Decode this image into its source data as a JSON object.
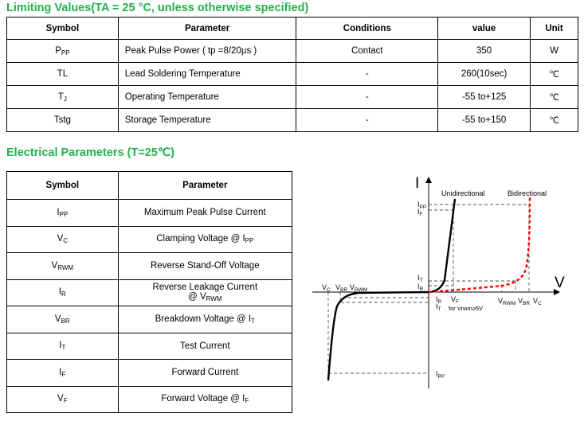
{
  "limiting": {
    "title": "Limiting Values(TA = 25 °C, unless otherwise specified)",
    "headers": [
      "Symbol",
      "Parameter",
      "Conditions",
      "value",
      "Unit"
    ],
    "rows": [
      {
        "symbol": "P",
        "sub": "PP",
        "parameter": "Peak Pulse Power ( tp =8/20μs )",
        "conditions": "Contact",
        "value": "350",
        "unit": "W"
      },
      {
        "symbol": "TL",
        "sub": "",
        "parameter": "Lead Soldering Temperature",
        "conditions": "-",
        "value": "260(10sec)",
        "unit": "℃"
      },
      {
        "symbol": "T",
        "sub": "J",
        "parameter": "Operating Temperature",
        "conditions": "-",
        "value": "-55 to+125",
        "unit": "℃"
      },
      {
        "symbol": "Tstg",
        "sub": "",
        "parameter": "Storage Temperature",
        "conditions": "-",
        "value": "-55 to+150",
        "unit": "℃"
      }
    ]
  },
  "electrical": {
    "title": "Electrical Parameters (T=25℃)",
    "headers": [
      "Symbol",
      "Parameter"
    ],
    "rows": [
      {
        "symbol": "I",
        "sub": "PP",
        "parameter": "Maximum Peak Pulse Current",
        "psym": "",
        "psub": "",
        "line2": ""
      },
      {
        "symbol": "V",
        "sub": "C",
        "parameter": "Clamping Voltage @ ",
        "psym": "I",
        "psub": "PP",
        "line2": ""
      },
      {
        "symbol": "V",
        "sub": "RWM",
        "parameter": "Reverse Stand-Off Voltage",
        "psym": "",
        "psub": "",
        "line2": ""
      },
      {
        "symbol": "I",
        "sub": "R",
        "parameter": "Reverse Leakage Current",
        "psym": "",
        "psub": "",
        "line2": "@ ",
        "l2sym": "V",
        "l2sub": "RWM"
      },
      {
        "symbol": "V",
        "sub": "BR",
        "parameter": "Breakdown Voltage @ ",
        "psym": "I",
        "psub": "T",
        "line2": ""
      },
      {
        "symbol": "I",
        "sub": "T",
        "parameter": "Test Current",
        "psym": "",
        "psub": "",
        "line2": ""
      },
      {
        "symbol": "I",
        "sub": "F",
        "parameter": "Forward Current",
        "psym": "",
        "psub": "",
        "line2": ""
      },
      {
        "symbol": "V",
        "sub": "F",
        "parameter": "Forward Voltage @ ",
        "psym": "I",
        "psub": "F",
        "line2": ""
      }
    ]
  },
  "diagram": {
    "axis_i": "I",
    "axis_v": "V",
    "unidirectional": "Unidirectional",
    "bidirectional": "Bidirectional",
    "unidirectional_color": "#000000",
    "bidirectional_color": "#ff0000",
    "labels": {
      "ipp_top": {
        "m": "I",
        "s": "PP"
      },
      "if": {
        "m": "I",
        "s": "F"
      },
      "it_left": {
        "m": "I",
        "s": "T"
      },
      "ir_left": {
        "m": "I",
        "s": "R"
      },
      "vc_left": {
        "m": "V",
        "s": "C"
      },
      "vbr_left": {
        "m": "V",
        "s": "BR"
      },
      "vrwm_left": {
        "m": "V",
        "s": "RWM"
      },
      "ir_right": {
        "m": "I",
        "s": "R"
      },
      "it_right": {
        "m": "I",
        "s": "T"
      },
      "vf": {
        "m": "V",
        "s": "F"
      },
      "vrwm_note": "for Vrwm≥5V",
      "vrwm_right": {
        "m": "V",
        "s": "RWM"
      },
      "vbr_right": {
        "m": "V",
        "s": "BR"
      },
      "vc_right": {
        "m": "V",
        "s": "C"
      },
      "ipp_bottom": {
        "m": "I",
        "s": "PP"
      }
    }
  }
}
